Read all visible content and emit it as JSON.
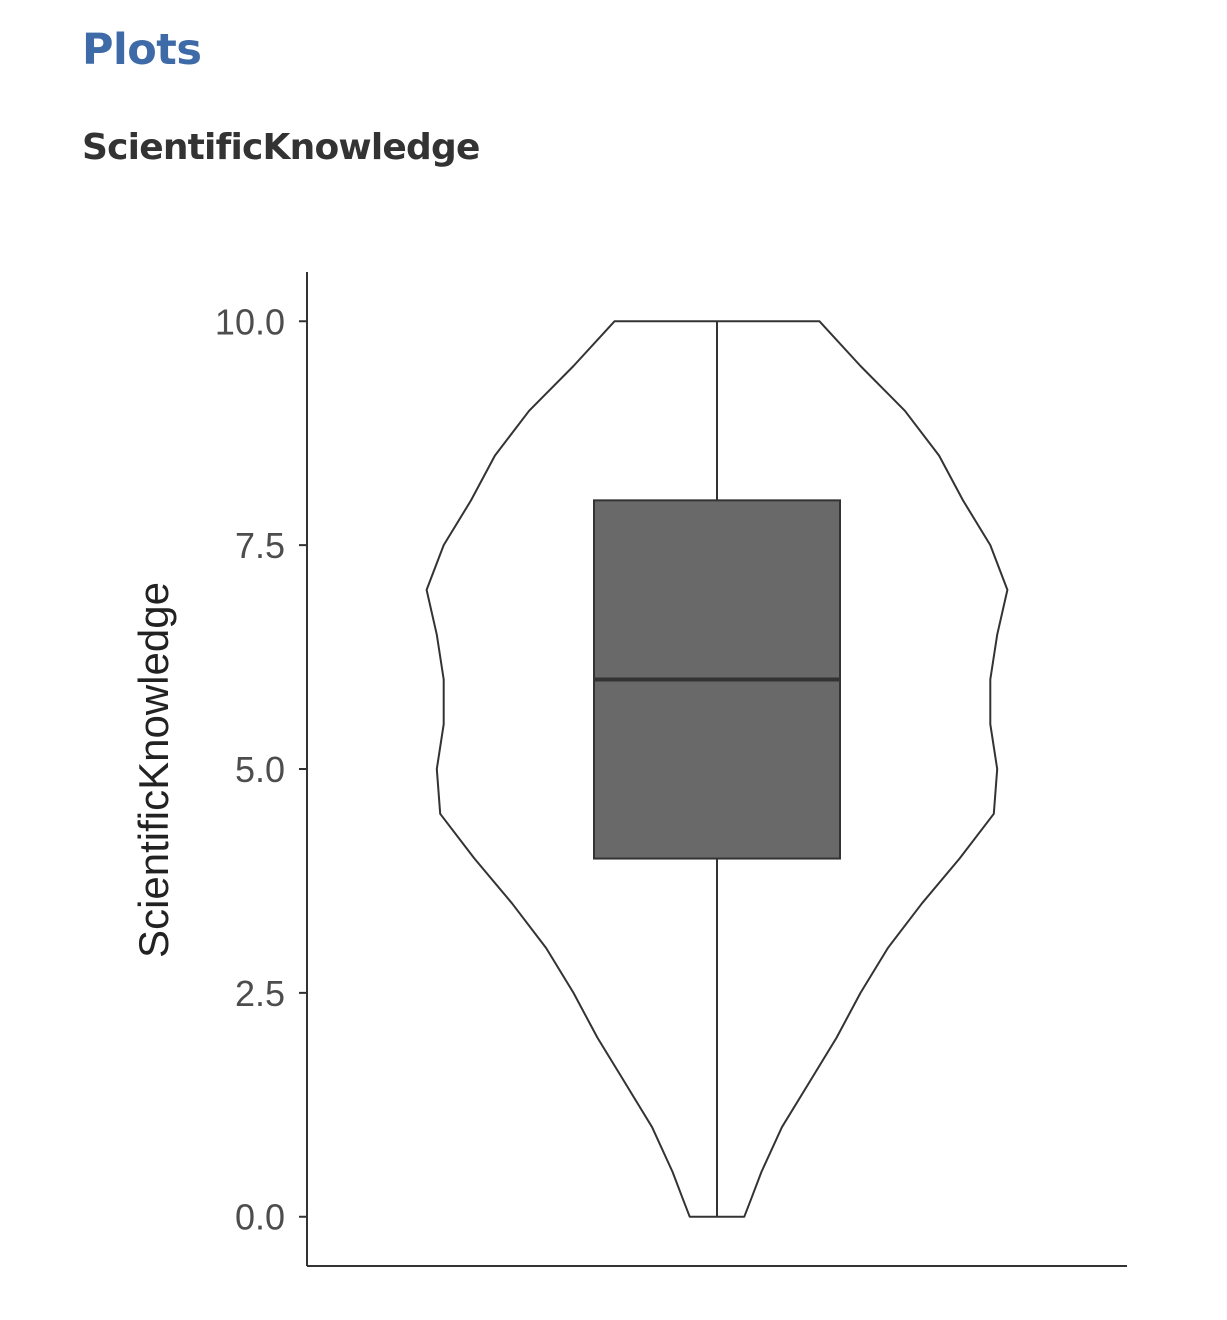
{
  "page": {
    "section_heading": "Plots",
    "plot_title": "ScientificKnowledge"
  },
  "colors": {
    "heading": "#3e6aa8",
    "title": "#333333",
    "box_fill": "#696969",
    "line": "#333333",
    "tick_label": "#4d4d4d"
  },
  "chart_data": {
    "type": "violin",
    "variable": "ScientificKnowledge",
    "ylabel": "ScientificKnowledge",
    "xlabel": "",
    "ylim": [
      -0.55,
      10.55
    ],
    "y_ticks": [
      0.0,
      2.5,
      5.0,
      7.5,
      10.0
    ],
    "y_tick_labels": [
      "0.0",
      "2.5",
      "5.0",
      "7.5",
      "10.0"
    ],
    "grid": false,
    "legend": "none",
    "boxplot": {
      "min": 0.0,
      "q1": 4.0,
      "median": 6.0,
      "q3": 8.0,
      "max": 10.0
    },
    "violin": {
      "max_half_width": 0.95,
      "profile": [
        {
          "y": 0.0,
          "half_width": 0.08
        },
        {
          "y": 0.2,
          "half_width": 0.1
        },
        {
          "y": 0.5,
          "half_width": 0.13
        },
        {
          "y": 1.0,
          "half_width": 0.19
        },
        {
          "y": 1.5,
          "half_width": 0.27
        },
        {
          "y": 2.0,
          "half_width": 0.35
        },
        {
          "y": 2.5,
          "half_width": 0.42
        },
        {
          "y": 3.0,
          "half_width": 0.5
        },
        {
          "y": 3.5,
          "half_width": 0.6
        },
        {
          "y": 4.0,
          "half_width": 0.71
        },
        {
          "y": 4.5,
          "half_width": 0.81
        },
        {
          "y": 5.0,
          "half_width": 0.82
        },
        {
          "y": 5.5,
          "half_width": 0.8
        },
        {
          "y": 6.0,
          "half_width": 0.8
        },
        {
          "y": 6.5,
          "half_width": 0.82
        },
        {
          "y": 7.0,
          "half_width": 0.85
        },
        {
          "y": 7.5,
          "half_width": 0.8
        },
        {
          "y": 8.0,
          "half_width": 0.72
        },
        {
          "y": 8.5,
          "half_width": 0.65
        },
        {
          "y": 9.0,
          "half_width": 0.55
        },
        {
          "y": 9.5,
          "half_width": 0.42
        },
        {
          "y": 10.0,
          "half_width": 0.3
        }
      ]
    }
  }
}
